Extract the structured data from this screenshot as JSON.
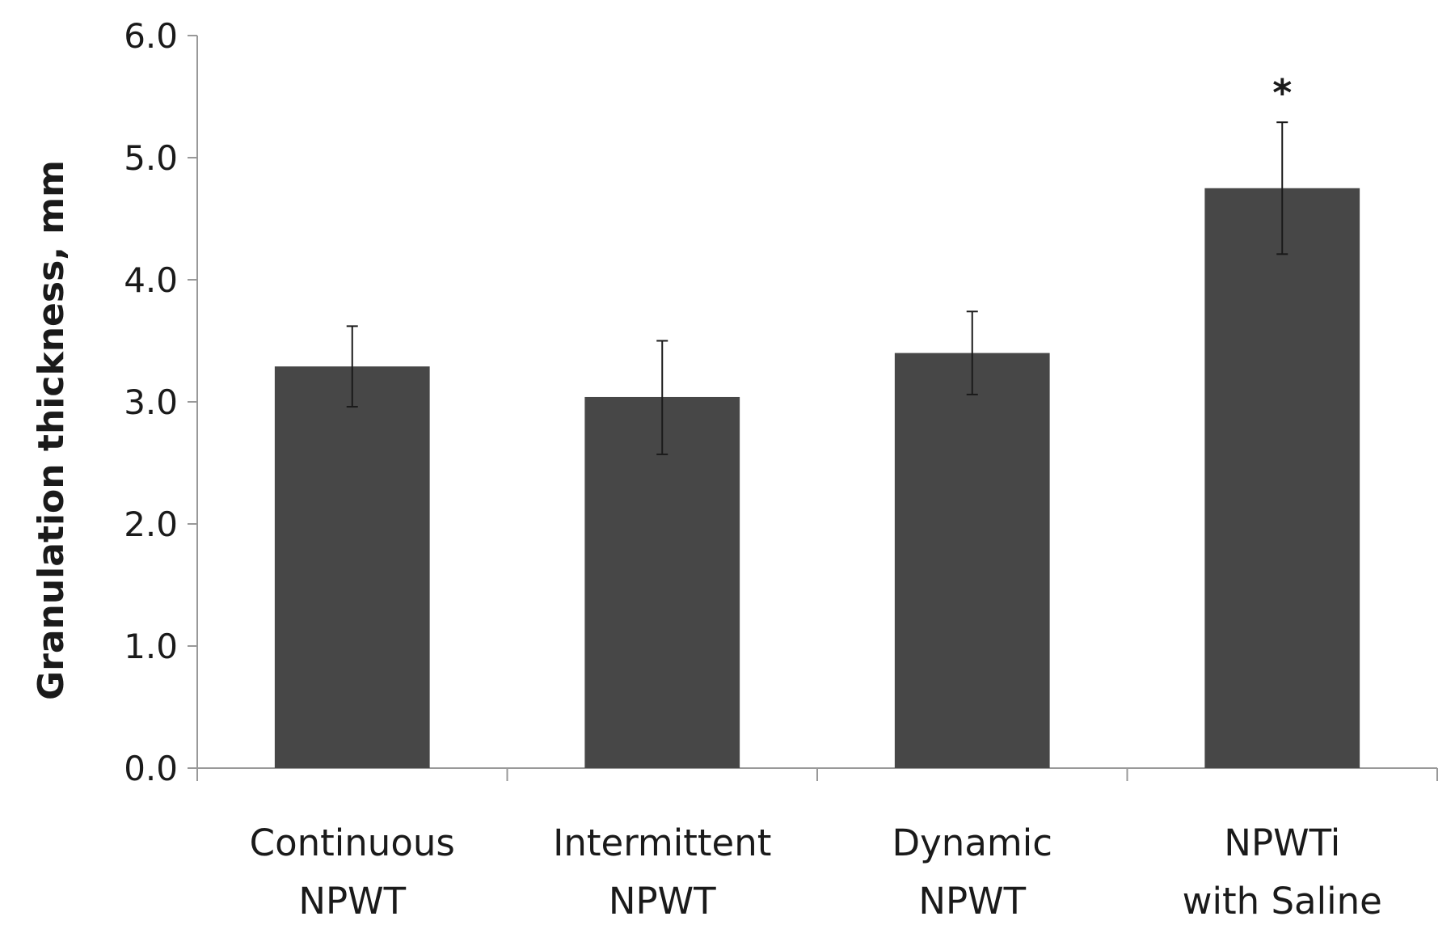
{
  "chart_data": {
    "type": "bar",
    "title": "",
    "xlabel": "",
    "ylabel": "Granulation thickness, mm",
    "ylim": [
      0,
      6
    ],
    "yticks": [
      "0.0",
      "1.0",
      "2.0",
      "3.0",
      "4.0",
      "5.0",
      "6.0"
    ],
    "grid": false,
    "legend": "none",
    "bar_color": "#474747",
    "categories": [
      [
        "Continuous",
        "NPWT"
      ],
      [
        "Intermittent",
        "NPWT"
      ],
      [
        "Dynamic",
        "NPWT"
      ],
      [
        "NPWTi",
        "with Saline"
      ]
    ],
    "values": [
      3.29,
      3.04,
      3.4,
      4.75
    ],
    "error_low": [
      2.96,
      2.57,
      3.06,
      4.21
    ],
    "error_high": [
      3.62,
      3.5,
      3.74,
      5.29
    ],
    "annotations": [
      "",
      "",
      "",
      "*"
    ]
  }
}
